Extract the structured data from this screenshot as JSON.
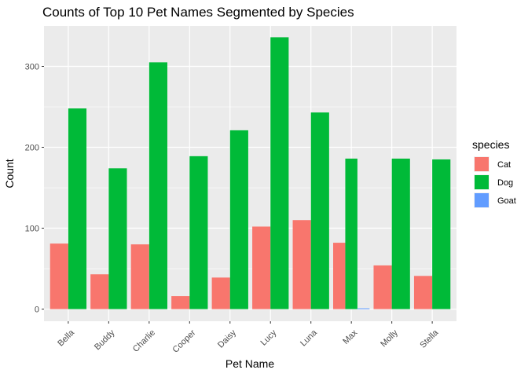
{
  "chart_data": {
    "type": "bar",
    "title": "Counts of Top 10 Pet Names Segmented by Species",
    "xlabel": "Pet Name",
    "ylabel": "Count",
    "ylim": [
      -15,
      350
    ],
    "yticks": [
      0,
      100,
      200,
      300
    ],
    "categories": [
      "Bella",
      "Buddy",
      "Charlie",
      "Cooper",
      "Daisy",
      "Lucy",
      "Luna",
      "Max",
      "Molly",
      "Stella"
    ],
    "series": [
      {
        "name": "Cat",
        "color": "#F8766D",
        "values": [
          81,
          43,
          80,
          16,
          39,
          102,
          110,
          82,
          54,
          41
        ]
      },
      {
        "name": "Dog",
        "color": "#00BA38",
        "values": [
          248,
          174,
          305,
          189,
          221,
          336,
          243,
          186,
          186,
          185
        ]
      },
      {
        "name": "Goat",
        "color": "#619CFF",
        "values": [
          null,
          null,
          null,
          null,
          null,
          null,
          null,
          1,
          null,
          null
        ]
      }
    ],
    "legend": {
      "title": "species",
      "position": "right"
    },
    "grid": true
  }
}
